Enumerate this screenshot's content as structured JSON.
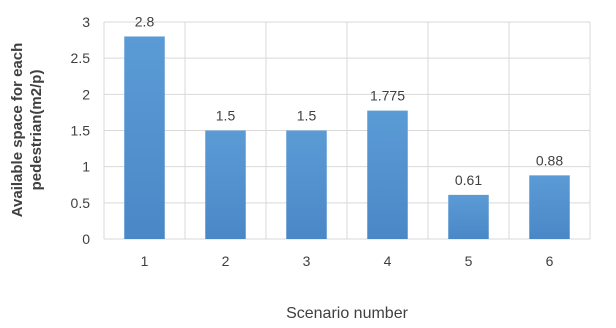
{
  "chart_data": {
    "type": "bar",
    "categories": [
      "1",
      "2",
      "3",
      "4",
      "5",
      "6"
    ],
    "values": [
      2.8,
      1.5,
      1.5,
      1.775,
      0.61,
      0.88
    ],
    "data_labels": [
      "2.8",
      "1.5",
      "1.5",
      "1.775",
      "0.61",
      "0.88"
    ],
    "title": "",
    "xlabel": "Scenario number",
    "ylabel_lines": [
      "Available space for each",
      "pedestrian(m2/p)"
    ],
    "ylim": [
      0,
      3
    ],
    "yticks": [
      0,
      0.5,
      1,
      1.5,
      2,
      2.5,
      3
    ],
    "ytick_labels": [
      "0",
      "0.5",
      "1",
      "1.5",
      "2",
      "2.5",
      "3"
    ],
    "grid": true,
    "legend": "none",
    "colors": {
      "bar_top": "#5b9bd5",
      "bar_bottom": "#4a87c7",
      "grid": "#d9d9d9",
      "text": "#404040"
    }
  }
}
